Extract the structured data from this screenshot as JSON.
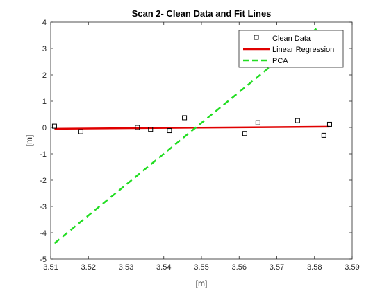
{
  "chart_data": {
    "type": "scatter",
    "title": "Scan 2- Clean Data and Fit Lines",
    "xlabel": "[m]",
    "ylabel": "[m]",
    "xlim": [
      3.51,
      3.59
    ],
    "ylim": [
      -5,
      4
    ],
    "x_ticks": [
      3.51,
      3.52,
      3.53,
      3.54,
      3.55,
      3.56,
      3.57,
      3.58,
      3.59
    ],
    "x_tick_labels": [
      "3.51",
      "3.52",
      "3.53",
      "3.54",
      "3.55",
      "3.56",
      "3.57",
      "3.58",
      "3.59"
    ],
    "y_ticks": [
      -5,
      -4,
      -3,
      -2,
      -1,
      0,
      1,
      2,
      3,
      4
    ],
    "y_tick_labels": [
      "-5",
      "-4",
      "-3",
      "-2",
      "-1",
      "0",
      "1",
      "2",
      "3",
      "4"
    ],
    "grid": false,
    "legend_position": "top-right",
    "series": [
      {
        "name": "Clean Data",
        "kind": "markers",
        "marker": "square",
        "color": "#000000",
        "x": [
          3.511,
          3.518,
          3.533,
          3.5365,
          3.5415,
          3.5455,
          3.5615,
          3.565,
          3.5755,
          3.5825,
          3.584
        ],
        "y": [
          0.05,
          -0.16,
          0.0,
          -0.07,
          -0.12,
          0.37,
          -0.23,
          0.18,
          0.26,
          -0.3,
          0.12
        ]
      },
      {
        "name": "Linear Regression",
        "kind": "line",
        "style": "solid",
        "color": "#e00000",
        "x": [
          3.511,
          3.584
        ],
        "y": [
          -0.05,
          0.03
        ]
      },
      {
        "name": "PCA",
        "kind": "line",
        "style": "dashed",
        "color": "#22dd22",
        "x": [
          3.511,
          3.5805
        ],
        "y": [
          -4.4,
          3.75
        ]
      }
    ]
  }
}
